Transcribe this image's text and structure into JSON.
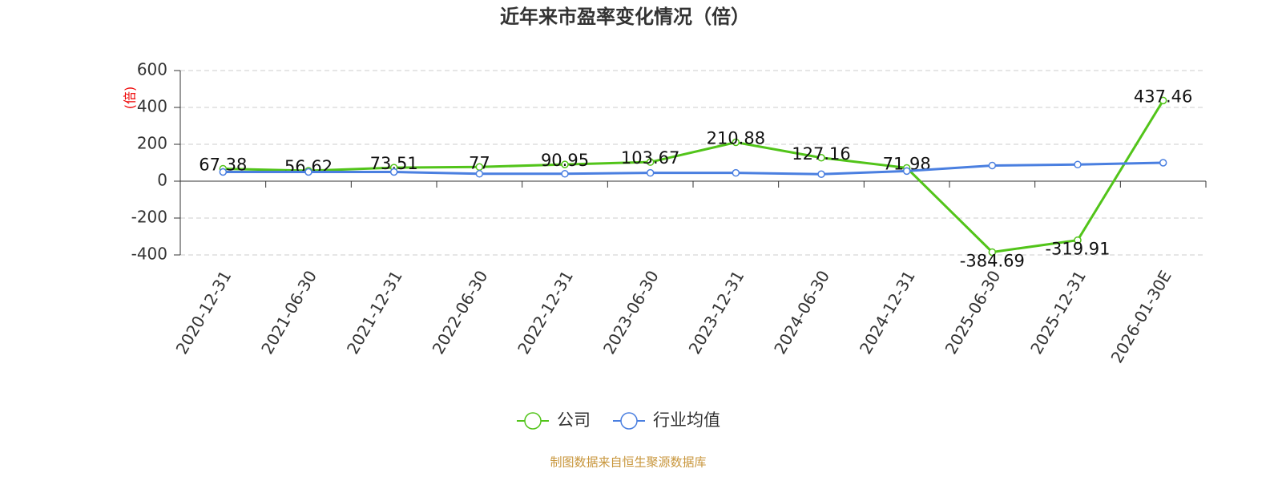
{
  "chart_data": {
    "type": "line",
    "title": "近年来市盈率变化情况（倍）",
    "y_label": "(倍)",
    "source": "制图数据来自恒生聚源数据库",
    "categories": [
      "2020-12-31",
      "2021-06-30",
      "2021-12-31",
      "2022-06-30",
      "2022-12-31",
      "2023-06-30",
      "2023-12-31",
      "2024-06-30",
      "2024-12-31",
      "2025-06-30",
      "2025-12-31",
      "2026-01-30E"
    ],
    "series": [
      {
        "name": "公司",
        "color": "#52c41a",
        "values": [
          67.38,
          56.62,
          73.51,
          77,
          90.95,
          103.67,
          210.88,
          127.16,
          71.98,
          -384.69,
          -319.91,
          437.46
        ],
        "show_labels": true
      },
      {
        "name": "行业均值",
        "color": "#4a7fe0",
        "values": [
          50,
          50,
          50,
          40,
          40,
          45,
          45,
          38,
          55,
          85,
          90,
          100
        ],
        "show_labels": false
      }
    ],
    "ylim": [
      -400,
      600
    ],
    "yticks": [
      -400,
      -200,
      0,
      200,
      400,
      600
    ],
    "grid": true
  }
}
